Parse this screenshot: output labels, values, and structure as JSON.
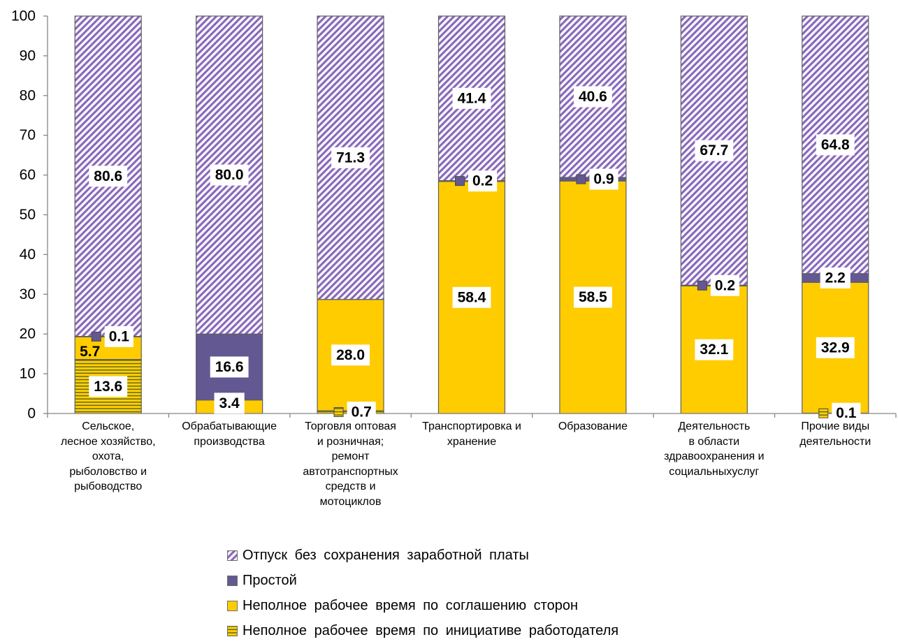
{
  "chart_data": {
    "type": "bar",
    "stacked": true,
    "categories": [
      "Сельское,\nлесное хозяйство,\nохота,\nрыболовство и\nрыбоводство",
      "Обрабатывающие\nпроизводства",
      "Торговля оптовая\nи розничная;\nремонт\nавтотранспортных\nсредств и\nмотоциклов",
      "Транспортировка и\nхранение",
      "Образование",
      "Деятельность\nв области\nздравоохранения и\nсоциальныхуслуг",
      "Прочие виды\nдеятельности"
    ],
    "series": [
      {
        "name": "Отпуск без сохранения заработной платы",
        "color": "#8567b8",
        "pattern": "diagonal-hatch",
        "values": [
          80.6,
          80.0,
          71.3,
          41.4,
          40.6,
          67.7,
          64.8
        ]
      },
      {
        "name": "Простой",
        "color": "#635892",
        "pattern": "solid",
        "values": [
          0.1,
          16.6,
          null,
          0.2,
          0.9,
          0.2,
          2.2
        ]
      },
      {
        "name": "Неполное рабочее время по соглашению сторон",
        "color": "#ffcc00",
        "pattern": "solid",
        "values": [
          5.7,
          3.4,
          28.0,
          58.4,
          58.5,
          32.1,
          32.9
        ]
      },
      {
        "name": "Неполное рабочее время по инициативе работодателя",
        "color": "#ffd100",
        "pattern": "horizontal-lines",
        "values": [
          13.6,
          null,
          0.7,
          null,
          null,
          null,
          0.1
        ]
      }
    ],
    "ylim": [
      0,
      100
    ],
    "yticks": [
      0,
      10,
      20,
      30,
      40,
      50,
      60,
      70,
      80,
      90,
      100
    ],
    "grid": false,
    "data_labels": true,
    "legend_position": "bottom"
  }
}
